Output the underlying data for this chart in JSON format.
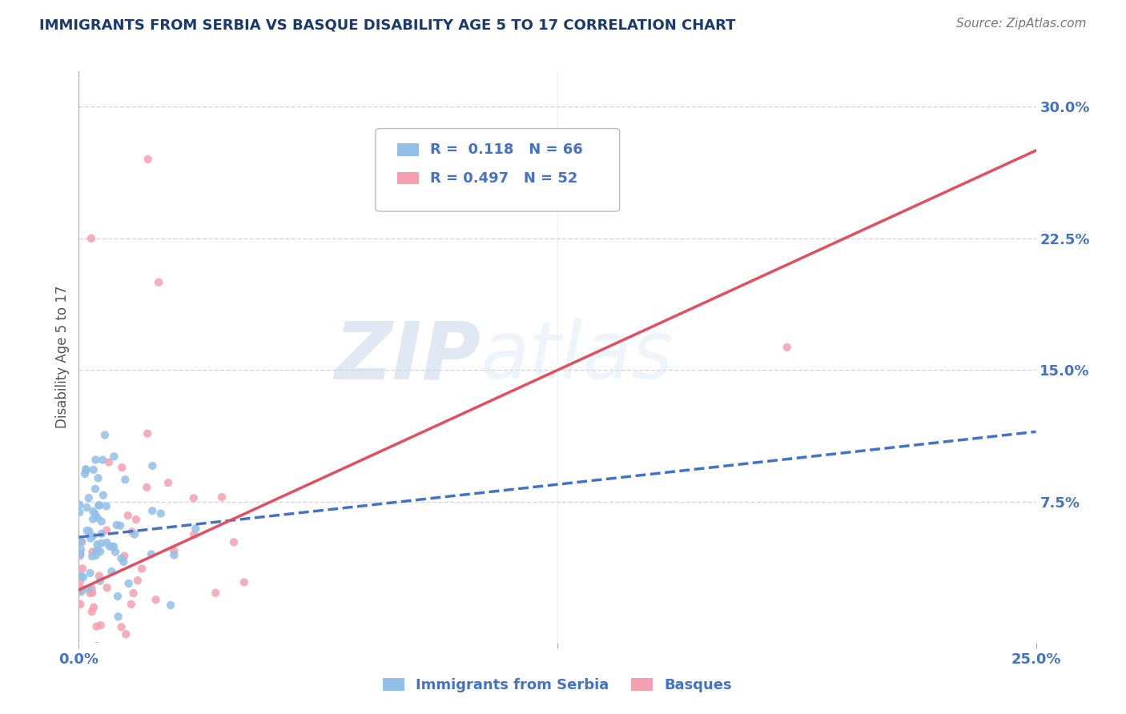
{
  "title": "IMMIGRANTS FROM SERBIA VS BASQUE DISABILITY AGE 5 TO 17 CORRELATION CHART",
  "source": "Source: ZipAtlas.com",
  "ylabel": "Disability Age 5 to 17",
  "xmin": 0.0,
  "xmax": 0.25,
  "ymin": -0.005,
  "ymax": 0.32,
  "yticks": [
    0.075,
    0.15,
    0.225,
    0.3
  ],
  "ytick_labels": [
    "7.5%",
    "15.0%",
    "22.5%",
    "30.0%"
  ],
  "watermark_zip": "ZIP",
  "watermark_atlas": "atlas",
  "series": [
    {
      "name": "Immigrants from Serbia",
      "R": 0.118,
      "N": 66,
      "color": "#92c0e8",
      "trend_color": "#4472c4",
      "trend_style": "dashed",
      "trend_x0": 0.0,
      "trend_x1": 0.25,
      "trend_y0": 0.055,
      "trend_y1": 0.115
    },
    {
      "name": "Basques",
      "R": 0.497,
      "N": 52,
      "color": "#f4a0b0",
      "trend_color": "#e05060",
      "trend_style": "solid",
      "trend_x0": 0.0,
      "trend_x1": 0.25,
      "trend_y0": 0.025,
      "trend_y1": 0.275
    }
  ],
  "legend_box_color": "#ffffff",
  "title_color": "#1a3a6b",
  "axis_label_color": "#4472c4",
  "grid_color": "#cccccc",
  "background_color": "#ffffff"
}
